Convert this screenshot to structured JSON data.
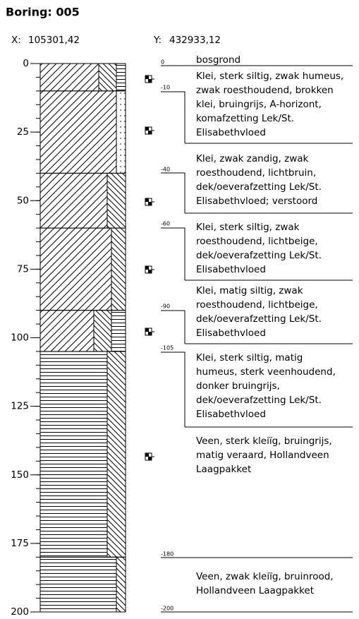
{
  "header": {
    "title": "Boring:  005",
    "x_label": "X:",
    "x_value": "105301,42",
    "y_label": "Y:",
    "y_value": "432933,12"
  },
  "depth_axis": {
    "ticks": [
      0,
      25,
      50,
      75,
      100,
      125,
      150,
      175,
      200
    ]
  },
  "layers": [
    {
      "depth_label": "0",
      "description": [
        "bosgrond"
      ]
    },
    {
      "depth_label": "-10",
      "description": [
        "Klei, sterk siltig, zwak humeus,",
        "zwak roesthoudend, brokken",
        "klei, bruingrijs, A-horizont,",
        "komafzetting Lek/St.",
        "Elisabethvloed"
      ]
    },
    {
      "depth_label": "-40",
      "description": [
        "Klei, zwak zandig, zwak",
        "roesthoudend, lichtbruin,",
        "dek/oeverafzetting Lek/St.",
        "Elisabethvloed; verstoord"
      ]
    },
    {
      "depth_label": "-60",
      "description": [
        "Klei, sterk siltig, zwak",
        "roesthoudend, lichtbeige,",
        "dek/oeverafzetting Lek/St.",
        "Elisabethvloed"
      ]
    },
    {
      "depth_label": "-90",
      "description": [
        "Klei, matig siltig, zwak",
        "roesthoudend, lichtbeige,",
        "dek/oeverafzetting Lek/St.",
        "Elisabethvloed"
      ]
    },
    {
      "depth_label": "-105",
      "description": [
        "Klei, sterk siltig, matig",
        "humeus, sterk veenhoudend,",
        "donker bruingrijs,",
        "dek/oeverafzetting Lek/St.",
        "Elisabethvloed"
      ]
    },
    {
      "depth_label": "",
      "description": [
        "Veen, sterk kleiïg, bruingrijs,",
        "matig veraard, Hollandveen",
        "Laagpakket"
      ]
    },
    {
      "depth_label": "-180",
      "description": [
        "Veen, zwak kleiïg, bruinrood,",
        "Hollandveen Laagpakket"
      ]
    },
    {
      "depth_label": "-200",
      "description": []
    }
  ]
}
